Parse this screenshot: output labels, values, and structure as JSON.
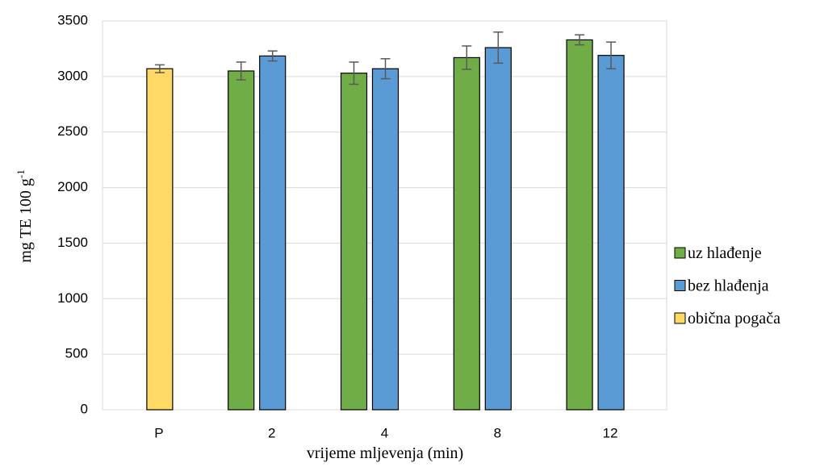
{
  "chart_data": {
    "type": "bar",
    "xlabel": "vrijeme mljevenja (min)",
    "ylabel": "mg TE 100 g",
    "ylabel_sup": "-1",
    "categories": [
      "P",
      "2",
      "4",
      "8",
      "12"
    ],
    "series": [
      {
        "name": "uz hlađenje",
        "color": "#70ad47",
        "values": [
          null,
          3050,
          3030,
          3170,
          3330
        ],
        "errors": [
          null,
          80,
          100,
          105,
          45
        ]
      },
      {
        "name": "bez hlađenja",
        "color": "#5b9bd5",
        "values": [
          null,
          3185,
          3070,
          3260,
          3190
        ],
        "errors": [
          null,
          45,
          90,
          140,
          120
        ]
      },
      {
        "name": "obična pogača",
        "color": "#ffd966",
        "values": [
          3070,
          null,
          null,
          null,
          null
        ],
        "errors": [
          35,
          null,
          null,
          null,
          null
        ]
      }
    ],
    "ylim": [
      0,
      3500
    ],
    "yticks": [
      0,
      500,
      1000,
      1500,
      2000,
      2500,
      3000,
      3500
    ],
    "grid": true,
    "legend": "right"
  }
}
